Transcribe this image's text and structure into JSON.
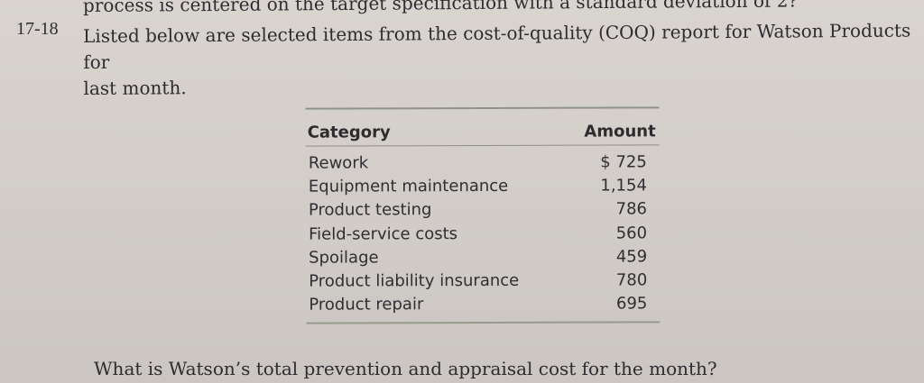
{
  "previous_problem_tail": "process is centered on the target specification with a standard deviation of 2?",
  "problem": {
    "number": "17-18",
    "line1": "Listed below are selected items from the cost-of-quality (COQ) report for Watson Products for",
    "line2": "last month."
  },
  "table": {
    "headers": {
      "category": "Category",
      "amount": "Amount"
    },
    "rows": [
      {
        "category": "Rework",
        "amount": "$ 725"
      },
      {
        "category": "Equipment maintenance",
        "amount": "1,154"
      },
      {
        "category": "Product testing",
        "amount": "786"
      },
      {
        "category": "Field-service costs",
        "amount": "560"
      },
      {
        "category": "Spoilage",
        "amount": "459"
      },
      {
        "category": "Product liability insurance",
        "amount": "780"
      },
      {
        "category": "Product repair",
        "amount": "695"
      }
    ]
  },
  "question": "What is Watson’s total prevention and appraisal cost for the month?"
}
